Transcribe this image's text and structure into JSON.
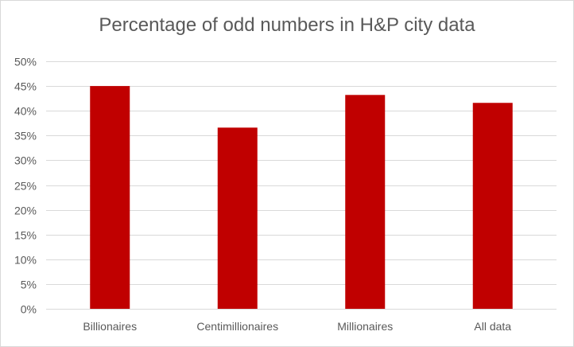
{
  "chart_data": {
    "type": "bar",
    "title": "Percentage of odd numbers in H&P city data",
    "xlabel": "",
    "ylabel": "",
    "categories": [
      "Billionaires",
      "Centimillionaires",
      "Millionaires",
      "All data"
    ],
    "series": [
      {
        "values": [
          0.45,
          0.366,
          0.432,
          0.416
        ],
        "color": "#c00000"
      }
    ],
    "ylim": [
      0,
      0.5
    ],
    "yticks": [
      0,
      0.05,
      0.1,
      0.15,
      0.2,
      0.25,
      0.3,
      0.35,
      0.4,
      0.45,
      0.5
    ],
    "ytick_labels": [
      "0%",
      "5%",
      "10%",
      "15%",
      "20%",
      "25%",
      "30%",
      "35%",
      "40%",
      "45%",
      "50%"
    ],
    "grid": true,
    "gridline_color": "#d9d9d9",
    "legend": "none"
  }
}
